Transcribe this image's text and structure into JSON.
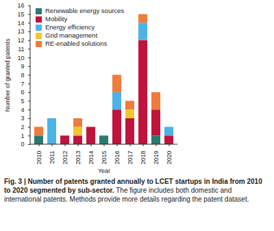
{
  "chart_data": {
    "type": "bar",
    "stacked": true,
    "title": "Fig. 3 | Number of patents granted annually to LCET startups in India from 2010 to 2020 segmented by sub-sector.",
    "subtitle": "The figure includes both domestic and international patents. Methods provide more details regarding the patent dataset.",
    "x_label": "Year",
    "y_label": "Number of granted patents",
    "categories": [
      "2010",
      "2011",
      "2012",
      "2013",
      "2014",
      "2015",
      "2016",
      "2017",
      "2018",
      "2019",
      "2020"
    ],
    "series": [
      {
        "name": "Renewable energy sources",
        "color": "#2b7a6f",
        "values": [
          1,
          0,
          0,
          0,
          0,
          1,
          0,
          0,
          0,
          1,
          0
        ]
      },
      {
        "name": "Mobility",
        "color": "#c0143c",
        "values": [
          0,
          0,
          1,
          1,
          2,
          0,
          4,
          3,
          12,
          3,
          1
        ]
      },
      {
        "name": "Energy efficiency",
        "color": "#4bb3e6",
        "values": [
          0,
          3,
          0,
          0,
          0,
          0,
          2,
          0,
          2,
          0,
          1
        ]
      },
      {
        "name": "Grid management",
        "color": "#f2c62f",
        "values": [
          0,
          0,
          0,
          1,
          0,
          0,
          0,
          1,
          0,
          0,
          0
        ]
      },
      {
        "name": "RE-enabled solutions",
        "color": "#ee7d3b",
        "values": [
          1,
          0,
          0,
          1,
          0,
          0,
          2,
          1,
          1,
          2,
          0
        ]
      }
    ],
    "ylim": [
      0,
      16
    ],
    "yticks": [
      0,
      1,
      2,
      3,
      4,
      5,
      6,
      7,
      8,
      9,
      10,
      11,
      12,
      13,
      14,
      15,
      16
    ],
    "grid": false,
    "legend": "top-left"
  }
}
